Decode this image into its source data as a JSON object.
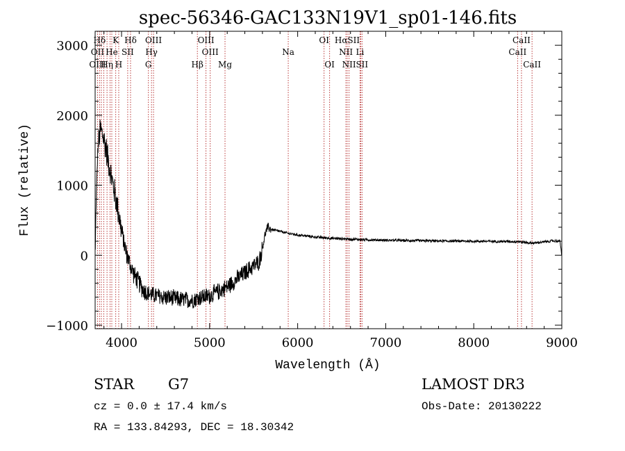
{
  "chart_data": {
    "type": "line",
    "title": "spec-56346-GAC133N19V1_sp01-146.fits",
    "xlabel": "Wavelength (Å)",
    "ylabel": "Flux (relative)",
    "xlim": [
      3700,
      9000
    ],
    "ylim": [
      -1050,
      3200
    ],
    "xticks": [
      4000,
      5000,
      6000,
      7000,
      8000,
      9000
    ],
    "yticks": [
      -1000,
      0,
      1000,
      2000,
      3000
    ],
    "spectrum_envelope": {
      "x": [
        3700,
        3710,
        3730,
        3760,
        3790,
        3820,
        3850,
        3880,
        3920,
        3960,
        4000,
        4050,
        4100,
        4150,
        4200,
        4250,
        4300,
        4400,
        4500,
        4600,
        4700,
        4800,
        4900,
        5000,
        5100,
        5200,
        5300,
        5400,
        5500,
        5560,
        5600,
        5630,
        5660,
        5700,
        5800,
        5900,
        6000,
        6200,
        6400,
        6600,
        6800,
        7000,
        7200,
        7500,
        8000,
        8500,
        8640,
        8700,
        8900,
        8980,
        9000
      ],
      "y": [
        -100,
        700,
        1500,
        1800,
        1700,
        1550,
        1350,
        1150,
        900,
        650,
        350,
        50,
        -150,
        -300,
        -400,
        -500,
        -550,
        -580,
        -600,
        -620,
        -640,
        -640,
        -600,
        -580,
        -520,
        -450,
        -350,
        -250,
        -150,
        -100,
        100,
        300,
        400,
        370,
        340,
        310,
        290,
        260,
        240,
        230,
        220,
        215,
        210,
        205,
        200,
        195,
        175,
        175,
        205,
        200,
        0
      ]
    },
    "line_markers": [
      {
        "label": "Hδ",
        "wavelength": 3750,
        "row": 0
      },
      {
        "label": "K",
        "wavelength": 3934,
        "row": 0
      },
      {
        "label": "Hδ",
        "wavelength": 4102,
        "row": 0
      },
      {
        "label": "OIII",
        "wavelength": 4363,
        "row": 0
      },
      {
        "label": "OIII",
        "wavelength": 4959,
        "row": 0
      },
      {
        "label": "OI",
        "wavelength": 6300,
        "row": 0
      },
      {
        "label": "HαSII",
        "wavelength": 6563,
        "row": 0
      },
      {
        "label": "CaII",
        "wavelength": 8542,
        "row": 0
      },
      {
        "label": "OII",
        "wavelength": 3727,
        "row": 1
      },
      {
        "label": "He",
        "wavelength": 3889,
        "row": 1
      },
      {
        "label": "SII",
        "wavelength": 4070,
        "row": 1
      },
      {
        "label": "Hγ",
        "wavelength": 4340,
        "row": 1
      },
      {
        "label": "OIII",
        "wavelength": 5007,
        "row": 1
      },
      {
        "label": "Na",
        "wavelength": 5893,
        "row": 1
      },
      {
        "label": "NII",
        "wavelength": 6548,
        "row": 1
      },
      {
        "label": "Li",
        "wavelength": 6708,
        "row": 1
      },
      {
        "label": "CaII",
        "wavelength": 8498,
        "row": 1
      },
      {
        "label": "OIII",
        "wavelength": 3727,
        "row": 2
      },
      {
        "label": "Hη",
        "wavelength": 3835,
        "row": 2
      },
      {
        "label": "H",
        "wavelength": 3968,
        "row": 2
      },
      {
        "label": "G",
        "wavelength": 4305,
        "row": 2
      },
      {
        "label": "Hβ",
        "wavelength": 4861,
        "row": 2
      },
      {
        "label": "Mg",
        "wavelength": 5175,
        "row": 2
      },
      {
        "label": "OI",
        "wavelength": 6363,
        "row": 2
      },
      {
        "label": "NII",
        "wavelength": 6584,
        "row": 2
      },
      {
        "label": "SII",
        "wavelength": 6731,
        "row": 2
      },
      {
        "label": "CaII",
        "wavelength": 8662,
        "row": 2
      }
    ],
    "marker_lines": [
      3727,
      3750,
      3771,
      3798,
      3835,
      3869,
      3889,
      3934,
      3968,
      4070,
      4102,
      4305,
      4340,
      4363,
      4861,
      4959,
      5007,
      5175,
      5893,
      6300,
      6363,
      6548,
      6563,
      6584,
      6708,
      6716,
      6731,
      8498,
      8542,
      8662
    ],
    "colors": {
      "spectrum": "#000000",
      "marker": "#b22222",
      "axes": "#000000"
    }
  },
  "info": {
    "object_type": "STAR",
    "subclass": "G7",
    "survey": "LAMOST DR3",
    "cz": "cz = 0.0 ± 17.4 km/s",
    "obs_date": "Obs-Date: 20130222",
    "radec": "RA = 133.84293, DEC =  18.30342"
  }
}
